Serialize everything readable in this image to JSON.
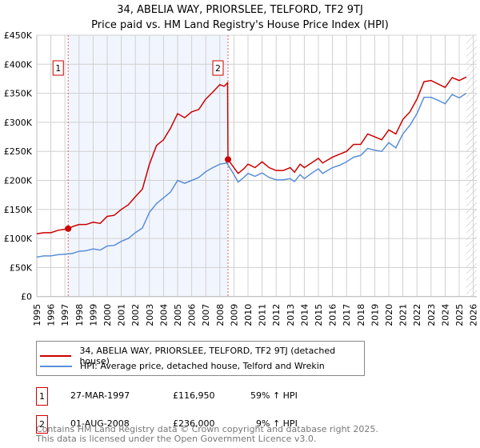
{
  "chart_data": {
    "type": "line",
    "title": "34, ABELIA WAY, PRIORSLEE, TELFORD, TF2 9TJ",
    "subtitle": "Price paid vs. HM Land Registry's House Price Index (HPI)",
    "xlim": [
      1995,
      2026
    ],
    "ylim": [
      0,
      450000
    ],
    "x_ticks": [
      "1995",
      "1996",
      "1997",
      "1998",
      "1999",
      "2000",
      "2001",
      "2002",
      "2003",
      "2004",
      "2005",
      "2006",
      "2007",
      "2008",
      "2009",
      "2010",
      "2011",
      "2012",
      "2013",
      "2014",
      "2015",
      "2016",
      "2017",
      "2018",
      "2019",
      "2020",
      "2021",
      "2022",
      "2023",
      "2024",
      "2025",
      "2026"
    ],
    "y_ticks": [
      {
        "v": 0,
        "label": "£0"
      },
      {
        "v": 50000,
        "label": "£50K"
      },
      {
        "v": 100000,
        "label": "£100K"
      },
      {
        "v": 150000,
        "label": "£150K"
      },
      {
        "v": 200000,
        "label": "£200K"
      },
      {
        "v": 250000,
        "label": "£250K"
      },
      {
        "v": 300000,
        "label": "£300K"
      },
      {
        "v": 350000,
        "label": "£350K"
      },
      {
        "v": 400000,
        "label": "£400K"
      },
      {
        "v": 450000,
        "label": "£450K"
      }
    ],
    "grid": true,
    "shaded_range": [
      1997.23,
      2008.58
    ],
    "forecast_hatch_from": 2025.5,
    "series": [
      {
        "name": "34, ABELIA WAY, PRIORSLEE, TELFORD, TF2 9TJ (detached house)",
        "color": "#cc0000",
        "x": [
          1995,
          1995.5,
          1996,
          1996.5,
          1997,
          1997.23,
          1997.6,
          1998,
          1998.5,
          1999,
          1999.5,
          2000,
          2000.5,
          2001,
          2001.5,
          2002,
          2002.5,
          2003,
          2003.5,
          2004,
          2004.5,
          2005,
          2005.5,
          2006,
          2006.5,
          2007,
          2007.5,
          2008,
          2008.3,
          2008.55,
          2008.58,
          2009,
          2009.3,
          2009.7,
          2010,
          2010.5,
          2011,
          2011.5,
          2012,
          2012.5,
          2013,
          2013.3,
          2013.7,
          2014,
          2014.5,
          2015,
          2015.3,
          2016,
          2016.5,
          2017,
          2017.5,
          2018,
          2018.5,
          2019,
          2019.5,
          2020,
          2020.5,
          2021,
          2021.5,
          2022,
          2022.5,
          2023,
          2023.5,
          2024,
          2024.5,
          2025,
          2025.5
        ],
        "y": [
          108000,
          110000,
          110000,
          114000,
          116000,
          116950,
          121000,
          124000,
          124000,
          128000,
          126000,
          138000,
          140000,
          150000,
          158000,
          172000,
          185000,
          228000,
          260000,
          270000,
          290000,
          315000,
          308000,
          318000,
          322000,
          340000,
          352000,
          365000,
          362000,
          368000,
          236000,
          222000,
          212000,
          220000,
          228000,
          222000,
          232000,
          222000,
          217000,
          217000,
          222000,
          214000,
          228000,
          222000,
          230000,
          238000,
          230000,
          240000,
          245000,
          250000,
          262000,
          262000,
          280000,
          275000,
          270000,
          287000,
          280000,
          305000,
          318000,
          340000,
          370000,
          372000,
          366000,
          360000,
          377000,
          372000,
          378000
        ]
      },
      {
        "name": "HPI: Average price, detached house, Telford and Wrekin",
        "color": "#5b8fd6",
        "x": [
          1995,
          1995.5,
          1996,
          1996.5,
          1997,
          1997.5,
          1998,
          1998.5,
          1999,
          1999.5,
          2000,
          2000.5,
          2001,
          2001.5,
          2002,
          2002.5,
          2003,
          2003.5,
          2004,
          2004.5,
          2005,
          2005.5,
          2006,
          2006.5,
          2007,
          2007.5,
          2008,
          2008.5,
          2009,
          2009.3,
          2009.7,
          2010,
          2010.5,
          2011,
          2011.5,
          2012,
          2012.5,
          2013,
          2013.3,
          2013.7,
          2014,
          2014.5,
          2015,
          2015.3,
          2016,
          2016.5,
          2017,
          2017.5,
          2018,
          2018.5,
          2019,
          2019.5,
          2020,
          2020.5,
          2021,
          2021.5,
          2022,
          2022.5,
          2023,
          2023.5,
          2024,
          2024.5,
          2025,
          2025.5
        ],
        "y": [
          68000,
          70000,
          70000,
          72000,
          73000,
          74000,
          78000,
          79000,
          82000,
          80000,
          87000,
          88000,
          95000,
          100000,
          110000,
          118000,
          145000,
          160000,
          170000,
          180000,
          200000,
          195000,
          200000,
          205000,
          215000,
          222000,
          228000,
          230000,
          210000,
          197000,
          205000,
          212000,
          207000,
          213000,
          205000,
          201000,
          201000,
          203000,
          198000,
          210000,
          203000,
          212000,
          220000,
          212000,
          222000,
          226000,
          232000,
          240000,
          243000,
          255000,
          252000,
          250000,
          265000,
          256000,
          280000,
          295000,
          315000,
          343000,
          343000,
          338000,
          332000,
          348000,
          342000,
          350000
        ]
      }
    ],
    "sales": [
      {
        "label": "1",
        "x": 1997.23,
        "y": 116950
      },
      {
        "label": "2",
        "x": 2008.58,
        "y": 236000
      }
    ]
  },
  "legend": {
    "property": "34, ABELIA WAY, PRIORSLEE, TELFORD, TF2 9TJ (detached house)",
    "hpi": "HPI: Average price, detached house, Telford and Wrekin"
  },
  "transactions": [
    {
      "num": "1",
      "date": "27-MAR-1997",
      "price": "£116,950",
      "hpi": "59% ↑ HPI"
    },
    {
      "num": "2",
      "date": "01-AUG-2008",
      "price": "£236,000",
      "hpi": "9% ↑ HPI"
    }
  ],
  "footer": {
    "line1": "Contains HM Land Registry data © Crown copyright and database right 2025.",
    "line2": "This data is licensed under the Open Government Licence v3.0."
  }
}
